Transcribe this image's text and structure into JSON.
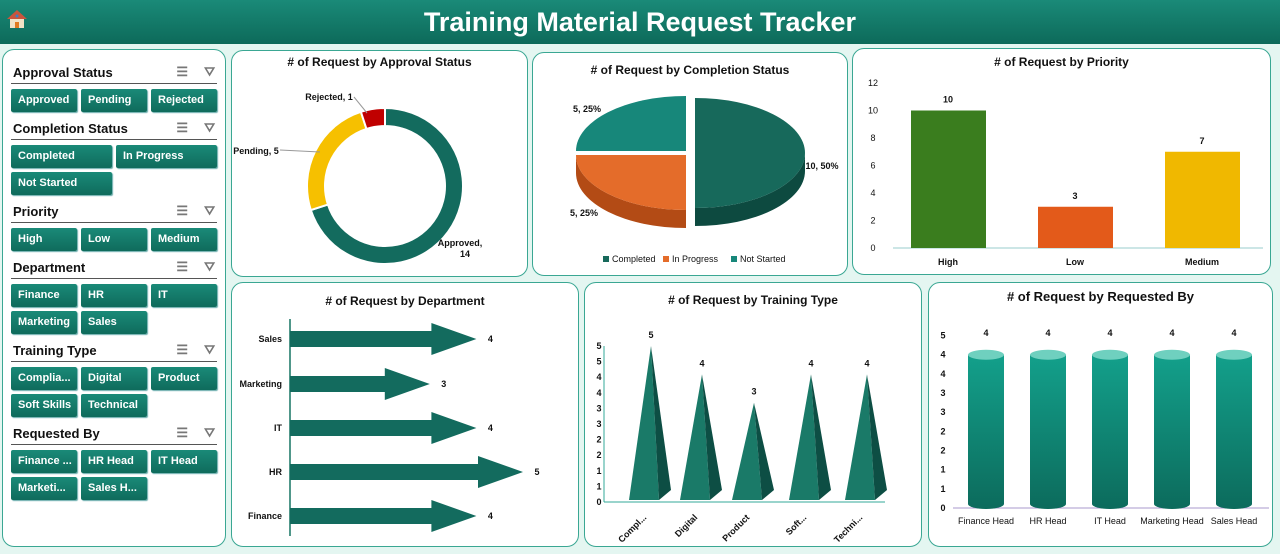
{
  "header": {
    "title": "Training Material Request Tracker",
    "home_icon": "home-icon"
  },
  "slicers": [
    {
      "title": "Approval Status",
      "cols": 3,
      "items": [
        "Approved",
        "Pending",
        "Rejected"
      ]
    },
    {
      "title": "Completion Status",
      "cols": 2,
      "items": [
        "Completed",
        "In Progress",
        "Not Started"
      ]
    },
    {
      "title": "Priority",
      "cols": 3,
      "items": [
        "High",
        "Low",
        "Medium"
      ]
    },
    {
      "title": "Department",
      "cols": 3,
      "items": [
        "Finance",
        "HR",
        "IT",
        "Marketing",
        "Sales"
      ]
    },
    {
      "title": "Training Type",
      "cols": 3,
      "items": [
        "Complia...",
        "Digital",
        "Product",
        "Soft Skills",
        "Technical"
      ]
    },
    {
      "title": "Requested By",
      "cols": 3,
      "items": [
        "Finance ...",
        "HR Head",
        "IT Head",
        "Marketi...",
        "Sales H..."
      ]
    }
  ],
  "chart_data": [
    {
      "type": "pie",
      "variant": "donut",
      "title": "# of Request by Approval Status",
      "categories": [
        "Approved",
        "Pending",
        "Rejected"
      ],
      "values": [
        14,
        5,
        1
      ],
      "labels": [
        "Approved,",
        "14",
        "Pending, 5",
        "Rejected, 1"
      ],
      "colors": [
        "#136b5e",
        "#f6c000",
        "#c00000"
      ]
    },
    {
      "type": "pie",
      "variant": "3d",
      "title": "# of Request by Completion Status",
      "categories": [
        "Completed",
        "In Progress",
        "Not Started"
      ],
      "values": [
        10,
        5,
        5
      ],
      "labels": [
        "10, 50%",
        "5, 25%",
        "5, 25%"
      ],
      "legend": "bottom",
      "colors": [
        "#17695b",
        "#e46c2a",
        "#17877a"
      ]
    },
    {
      "type": "bar",
      "title": "# of Request by Priority",
      "categories": [
        "High",
        "Low",
        "Medium"
      ],
      "values": [
        10,
        3,
        7
      ],
      "ylim": [
        0,
        12
      ],
      "yticks": [
        "0",
        "2",
        "4",
        "6",
        "8",
        "10",
        "12"
      ],
      "colors": [
        "#3a7d1e",
        "#e35a1a",
        "#f0b800"
      ]
    },
    {
      "type": "bar",
      "orientation": "horizontal",
      "title": "# of Request by Department",
      "categories": [
        "Sales",
        "Marketing",
        "IT",
        "HR",
        "Finance"
      ],
      "values": [
        4,
        3,
        4,
        5,
        4
      ],
      "color": "#136b5e"
    },
    {
      "type": "bar",
      "variant": "pyramid",
      "title": "# of Request by Training Type",
      "categories": [
        "Compl...",
        "Digital",
        "Product",
        "Soft...",
        "Techni..."
      ],
      "values": [
        5,
        4,
        3,
        4,
        4
      ],
      "ylim": [
        0,
        5
      ],
      "yticks": [
        "0",
        "1",
        "1",
        "2",
        "2",
        "3",
        "3",
        "4",
        "4",
        "5",
        "5"
      ],
      "color": "#167563"
    },
    {
      "type": "bar",
      "variant": "cylinder",
      "title": "# of Request by Requested By",
      "categories": [
        "Finance Head",
        "HR Head",
        "IT Head",
        "Marketing Head",
        "Sales Head"
      ],
      "values": [
        4,
        4,
        4,
        4,
        4
      ],
      "ylim": [
        0,
        4.5
      ],
      "yticks": [
        "0",
        "1",
        "1",
        "2",
        "2",
        "3",
        "3",
        "4",
        "4",
        "5"
      ],
      "color": "#129a86"
    }
  ]
}
